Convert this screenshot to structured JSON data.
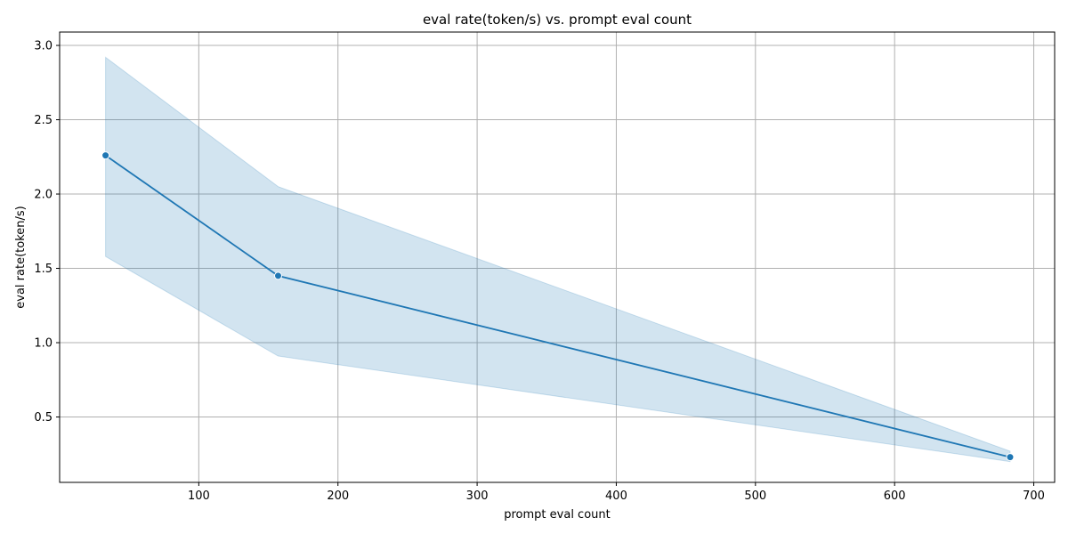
{
  "chart_data": {
    "type": "line",
    "title": "eval rate(token/s) vs. prompt eval count",
    "xlabel": "prompt eval count",
    "ylabel": "eval rate(token/s)",
    "xlim": [
      0,
      715
    ],
    "ylim": [
      0.06,
      3.09
    ],
    "xticks": [
      100,
      200,
      300,
      400,
      500,
      600,
      700
    ],
    "yticks": [
      0.5,
      1.0,
      1.5,
      2.0,
      2.5,
      3.0
    ],
    "xtick_labels": [
      "100",
      "200",
      "300",
      "400",
      "500",
      "600",
      "700"
    ],
    "ytick_labels": [
      "0.5",
      "1.0",
      "1.5",
      "2.0",
      "2.5",
      "3.0"
    ],
    "grid": true,
    "series": [
      {
        "x": [
          33,
          157,
          683
        ],
        "y": [
          2.26,
          1.45,
          0.23
        ],
        "ci_lower": [
          1.58,
          0.91,
          0.2
        ],
        "ci_upper": [
          2.92,
          2.05,
          0.27
        ],
        "color": "#1f77b4",
        "marker": "circle"
      }
    ]
  }
}
